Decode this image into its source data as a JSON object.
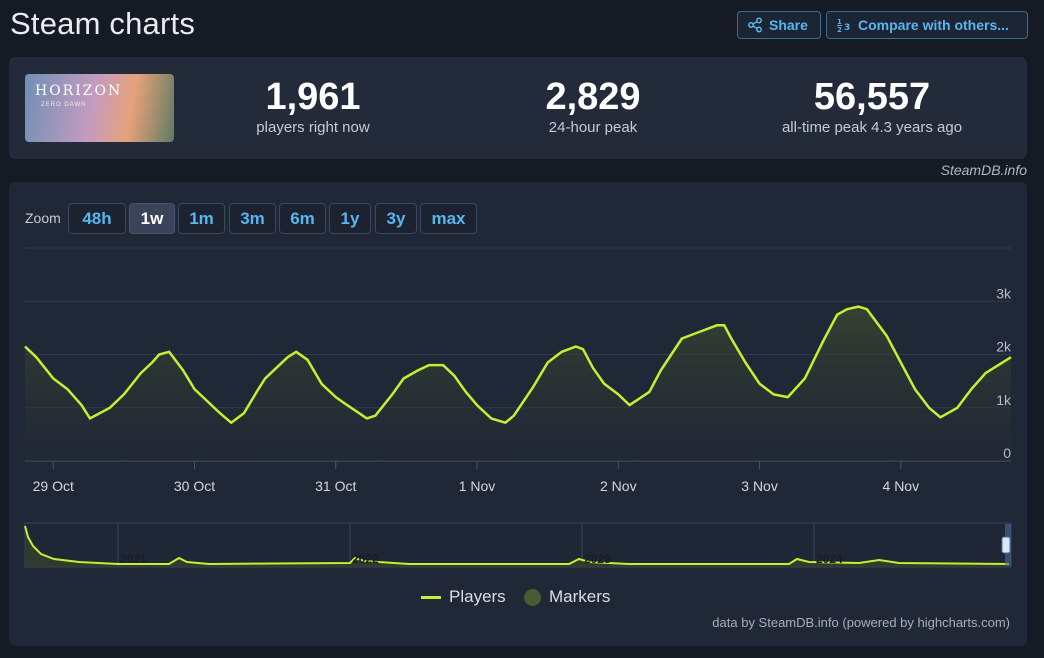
{
  "header": {
    "title": "Steam charts",
    "share_label": "Share",
    "compare_label": "Compare with others..."
  },
  "game": {
    "logo_text": "HORIZON",
    "logo_sub": "ZERO DAWN"
  },
  "stats": {
    "now_value": "1,961",
    "now_label": "players right now",
    "peak24_value": "2,829",
    "peak24_label": "24-hour peak",
    "alltime_value": "56,557",
    "alltime_label": "all-time peak 4.3 years ago"
  },
  "credit_top": "SteamDB.info",
  "zoom": {
    "label": "Zoom",
    "options": [
      "48h",
      "1w",
      "1m",
      "3m",
      "6m",
      "1y",
      "3y",
      "max"
    ],
    "active": "1w"
  },
  "legend": {
    "players": "Players",
    "markers": "Markers"
  },
  "credit_bottom": "data by SteamDB.info (powered by highcharts.com)",
  "colors": {
    "line": "#c5f02f",
    "accent": "#58b6ef"
  },
  "chart_data": {
    "type": "line",
    "x_ticks": [
      "29 Oct",
      "30 Oct",
      "31 Oct",
      "1 Nov",
      "2 Nov",
      "3 Nov",
      "4 Nov"
    ],
    "y_ticks": [
      "0",
      "1k",
      "2k",
      "3k"
    ],
    "ylim": [
      0,
      4000
    ],
    "xlim": [
      -0.2,
      6.78
    ],
    "series": [
      {
        "name": "Players",
        "x": [
          -0.2,
          -0.12,
          0,
          0.1,
          0.2,
          0.26,
          0.4,
          0.5,
          0.62,
          0.7,
          0.75,
          0.82,
          0.92,
          1.0,
          1.06,
          1.18,
          1.26,
          1.35,
          1.44,
          1.5,
          1.58,
          1.66,
          1.72,
          1.8,
          1.9,
          2.0,
          2.08,
          2.22,
          2.28,
          2.4,
          2.48,
          2.58,
          2.66,
          2.76,
          2.84,
          2.92,
          3.0,
          3.1,
          3.2,
          3.26,
          3.4,
          3.5,
          3.6,
          3.7,
          3.75,
          3.82,
          3.9,
          4.0,
          4.08,
          4.22,
          4.3,
          4.45,
          4.6,
          4.7,
          4.75,
          4.8,
          4.9,
          5.0,
          5.1,
          5.2,
          5.32,
          5.45,
          5.55,
          5.62,
          5.7,
          5.76,
          5.9,
          6.0,
          6.1,
          6.2,
          6.28,
          6.4,
          6.5,
          6.6,
          6.78
        ],
        "values": [
          2150,
          1950,
          1550,
          1350,
          1050,
          800,
          1000,
          1250,
          1650,
          1850,
          2000,
          2050,
          1700,
          1350,
          1200,
          900,
          720,
          900,
          1300,
          1550,
          1750,
          1950,
          2050,
          1900,
          1450,
          1200,
          1050,
          800,
          850,
          1250,
          1550,
          1700,
          1800,
          1800,
          1600,
          1300,
          1050,
          800,
          720,
          850,
          1400,
          1850,
          2050,
          2150,
          2100,
          1750,
          1450,
          1250,
          1050,
          1300,
          1700,
          2300,
          2450,
          2550,
          2550,
          2300,
          1850,
          1450,
          1250,
          1200,
          1550,
          2250,
          2750,
          2850,
          2900,
          2850,
          2350,
          1850,
          1350,
          1000,
          820,
          1000,
          1350,
          1650,
          1950
        ]
      }
    ],
    "navigator": {
      "labels": [
        "2021",
        "2022",
        "2023",
        "2024"
      ]
    }
  }
}
